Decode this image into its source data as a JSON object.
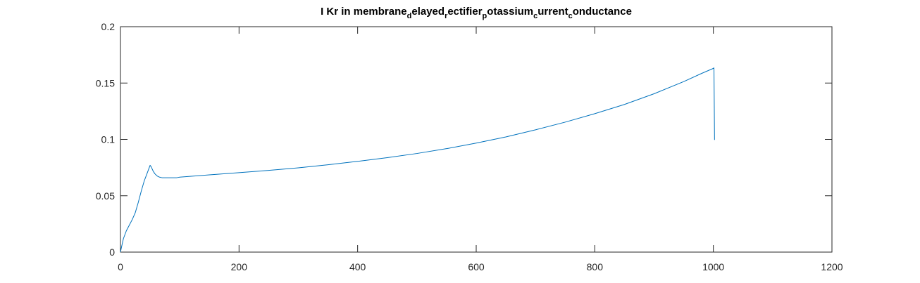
{
  "chart_data": {
    "type": "line",
    "title_parts": [
      {
        "text": "I Kr in membrane",
        "sub": false
      },
      {
        "text": "d",
        "sub": true
      },
      {
        "text": "elayed",
        "sub": false
      },
      {
        "text": "r",
        "sub": true
      },
      {
        "text": "ectifier",
        "sub": false
      },
      {
        "text": "p",
        "sub": true
      },
      {
        "text": "otassium",
        "sub": false
      },
      {
        "text": "c",
        "sub": true
      },
      {
        "text": "urrent",
        "sub": false
      },
      {
        "text": "c",
        "sub": true
      },
      {
        "text": "onductance",
        "sub": false
      }
    ],
    "xlabel": "",
    "ylabel": "",
    "xlim": [
      0,
      1200
    ],
    "ylim": [
      0,
      0.2
    ],
    "xticks": [
      0,
      200,
      400,
      600,
      800,
      1000,
      1200
    ],
    "xtick_labels": [
      "0",
      "200",
      "400",
      "600",
      "800",
      "1000",
      "1200"
    ],
    "yticks": [
      0,
      0.05,
      0.1,
      0.15,
      0.2
    ],
    "ytick_labels": [
      "0",
      "0.05",
      "0.1",
      "0.15",
      "0.2"
    ],
    "grid": false,
    "box": true,
    "series": [
      {
        "color": "#0072BD",
        "x": [
          0,
          2,
          5,
          10,
          15,
          20,
          25,
          30,
          35,
          40,
          45,
          50,
          52,
          55,
          58,
          62,
          66,
          70,
          75,
          80,
          85,
          90,
          95,
          100,
          150,
          200,
          250,
          300,
          350,
          400,
          450,
          500,
          550,
          600,
          650,
          700,
          750,
          800,
          850,
          900,
          950,
          980,
          1000,
          1001,
          1002
        ],
        "y": [
          0,
          0.005,
          0.012,
          0.019,
          0.024,
          0.029,
          0.035,
          0.044,
          0.054,
          0.063,
          0.07,
          0.077,
          0.0755,
          0.072,
          0.0695,
          0.0675,
          0.0665,
          0.066,
          0.066,
          0.066,
          0.066,
          0.066,
          0.066,
          0.0665,
          0.0685,
          0.0705,
          0.0725,
          0.0748,
          0.0775,
          0.0805,
          0.0838,
          0.0875,
          0.0918,
          0.0967,
          0.1022,
          0.1085,
          0.1153,
          0.1228,
          0.131,
          0.1405,
          0.1513,
          0.1585,
          0.163,
          0.1635,
          0.0995
        ]
      }
    ]
  }
}
